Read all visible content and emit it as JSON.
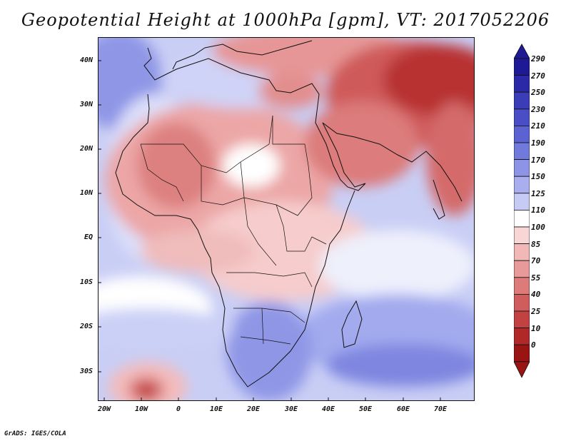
{
  "title": "Geopotential Height at 1000hPa [gpm], VT: 2017052206",
  "credit": "GrADS: IGES/COLA",
  "map": {
    "lat_labels": [
      "40N",
      "30N",
      "20N",
      "10N",
      "EQ",
      "10S",
      "20S",
      "30S"
    ],
    "lon_labels": [
      "20W",
      "10W",
      "0",
      "10E",
      "20E",
      "30E",
      "40E",
      "50E",
      "60E",
      "70E"
    ],
    "lon_range": [
      -21,
      80
    ],
    "lat_range": [
      -36,
      45
    ]
  },
  "colorbar": {
    "levels": [
      "290",
      "270",
      "250",
      "230",
      "210",
      "190",
      "170",
      "150",
      "125",
      "110",
      "100",
      "85",
      "70",
      "55",
      "40",
      "25",
      "10",
      "0"
    ],
    "colors": [
      "#1e1a96",
      "#2b29a8",
      "#3a3cb8",
      "#4a4ec6",
      "#5c62d2",
      "#7279dc",
      "#8d94e6",
      "#a8aeee",
      "#c6cbf5",
      "#ffffff",
      "#f9d6d6",
      "#f2b8b8",
      "#e89a9a",
      "#dd7b7b",
      "#d05d5d",
      "#c24242",
      "#b02828",
      "#9a1414"
    ]
  }
}
